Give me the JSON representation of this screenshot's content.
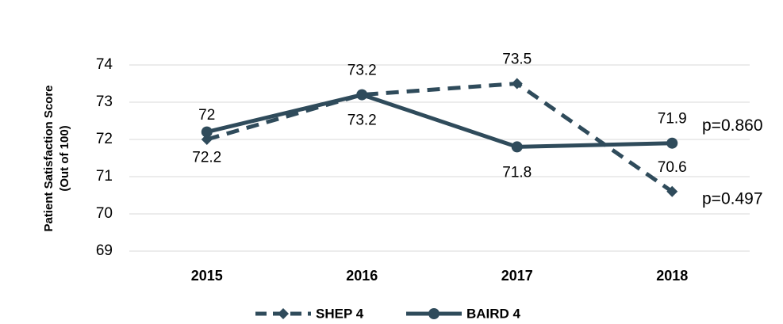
{
  "chart_data": {
    "type": "line",
    "y_label": [
      "Patient Satisfaction Score",
      "(Out of 100)"
    ],
    "categories": [
      "2015",
      "2016",
      "2017",
      "2018"
    ],
    "series": [
      {
        "name": "SHEP 4",
        "color": "#2f4b5b",
        "dashed": true,
        "values": [
          72,
          73.2,
          73.5,
          70.6
        ]
      },
      {
        "name": "BAIRD 4",
        "color": "#2f4b5b",
        "dashed": false,
        "values": [
          72.2,
          73.2,
          71.8,
          71.9
        ]
      }
    ],
    "annotations": [
      "p=0.860",
      "p=0.497"
    ],
    "ylim": [
      69,
      74
    ],
    "yticks": [
      69,
      70,
      71,
      72,
      73,
      74
    ],
    "grid": true,
    "legend": "bottom"
  }
}
